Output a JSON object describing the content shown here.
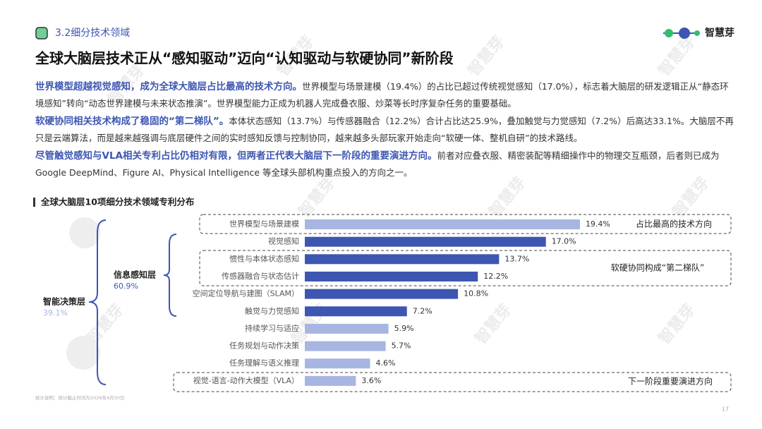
{
  "header": {
    "section": "3.2细分技术领域",
    "brand": "智慧芽"
  },
  "title": "全球大脑层技术正从“感知驱动”迈向“认知驱动与软硬协同”新阶段",
  "paragraphs": [
    {
      "lead": "世界模型超越视觉感知，成为全球大脑层占比最高的技术方向。",
      "text": "世界模型与场景建模（19.4%）的占比已超过传统视觉感知（17.0%），标志着大脑层的研发逻辑正从“静态环境感知”转向“动态世界建模与未来状态推演”。世界模型能力正成为机器人完成叠衣服、炒菜等长时序复杂任务的重要基础。"
    },
    {
      "lead": "软硬协同相关技术构成了稳固的“第二梯队”。",
      "text": "本体状态感知（13.7%）与传感器融合（12.2%）合计占比达25.9%，叠加触觉与力觉感知（7.2%）后高达33.1%。大脑层不再只是云端算法，而是越来越强调与底层硬件之间的实时感知反馈与控制协同，越来越多头部玩家开始走向“软硬一体、整机自研”的技术路线。"
    },
    {
      "lead": "尽管触觉感知与VLA相关专利占比仍相对有限，但两者正代表大脑层下一阶段的重要演进方向。",
      "text": "前者对应叠衣服、精密装配等精细操作中的物理交互瓶颈，后者则已成为Google DeepMind、Figure AI、Physical Intelligence 等全球头部机构重点投入的方向之一。"
    }
  ],
  "hierarchy": [
    {
      "name": "智能决策层",
      "share": "39.1%"
    },
    {
      "name": "信息感知层",
      "share": "60.9%"
    }
  ],
  "chart_data": {
    "type": "bar",
    "orientation": "horizontal",
    "title": "全球大脑层10项细分技术领域专利分布",
    "categories": [
      "世界模型与场景建模",
      "视觉感知",
      "惯性与本体状态感知",
      "传感器融合与状态估计",
      "空间定位导航与建图（SLAM）",
      "触觉与力觉感知",
      "持续学习与适应",
      "任务规划与动作决策",
      "任务理解与语义推理",
      "视觉-语言-动作大模型（VLA）"
    ],
    "values": [
      19.4,
      17.0,
      13.7,
      12.2,
      10.8,
      7.2,
      5.9,
      5.7,
      4.6,
      3.6
    ],
    "value_labels": [
      "19.4%",
      "17.0%",
      "13.7%",
      "12.2%",
      "10.8%",
      "7.2%",
      "5.9%",
      "5.7%",
      "4.6%",
      "3.6%"
    ],
    "colors": [
      "#a7b5e1",
      "#3d56b2",
      "#3d56b2",
      "#3d56b2",
      "#3d56b2",
      "#3d56b2",
      "#a7b5e1",
      "#a7b5e1",
      "#a7b5e1",
      "#a7b5e1"
    ],
    "annotations": [
      "占比最高的技术方向",
      "软硬协同构成“第二梯队”",
      "下一阶段重要演进方向"
    ]
  },
  "footnote": "统计说明：统计截止时间为2026年4月30日",
  "page_number": "17",
  "watermark": "智慧芽"
}
